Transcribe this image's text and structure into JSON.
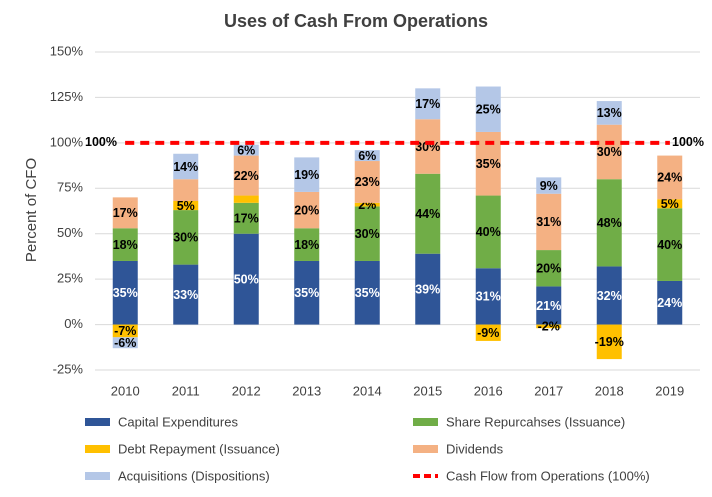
{
  "chart_data": {
    "type": "stacked-bar",
    "title": "Uses of Cash From Operations",
    "y_label": "Percent of CFO",
    "categories": [
      "2010",
      "2011",
      "2012",
      "2013",
      "2014",
      "2015",
      "2016",
      "2017",
      "2018",
      "2019"
    ],
    "ylim": [
      -25,
      150
    ],
    "yticks": [
      {
        "value": -25,
        "label": "-25%"
      },
      {
        "value": 0,
        "label": "0%"
      },
      {
        "value": 25,
        "label": "25%"
      },
      {
        "value": 50,
        "label": "50%"
      },
      {
        "value": 75,
        "label": "75%"
      },
      {
        "value": 100,
        "label": "100%"
      },
      {
        "value": 125,
        "label": "125%"
      },
      {
        "value": 150,
        "label": "150%"
      }
    ],
    "grid": true,
    "series": [
      {
        "name": "Capital Expenditures",
        "color": "#2f5597",
        "label_color": "#ffffff",
        "values": [
          35,
          33,
          50,
          35,
          35,
          39,
          31,
          21,
          32,
          24
        ],
        "value_labels": [
          "35%",
          "33%",
          "50%",
          "35%",
          "35%",
          "39%",
          "31%",
          "21%",
          "32%",
          "24%"
        ]
      },
      {
        "name": "Share Repurcahses (Issuance)",
        "color": "#70ad47",
        "label_color": "#000000",
        "values": [
          18,
          30,
          17,
          18,
          30,
          44,
          40,
          20,
          48,
          40
        ],
        "value_labels": [
          "18%",
          "30%",
          "17%",
          "18%",
          "30%",
          "44%",
          "40%",
          "20%",
          "48%",
          "40%"
        ]
      },
      {
        "name": "Debt Repayment (Issuance)",
        "color": "#ffc000",
        "label_color": "#000000",
        "values": [
          -7,
          5,
          4,
          0,
          2,
          0,
          -9,
          -2,
          -19,
          5
        ],
        "value_labels": [
          "-7%",
          "5%",
          null,
          null,
          "2%",
          null,
          "-9%",
          "-2%",
          "-19%",
          "5%"
        ]
      },
      {
        "name": "Dividends",
        "color": "#f4b183",
        "label_color": "#000000",
        "values": [
          17,
          12,
          22,
          20,
          23,
          30,
          35,
          31,
          30,
          24
        ],
        "value_labels": [
          "17%",
          null,
          "22%",
          "20%",
          "23%",
          "30%",
          "35%",
          "31%",
          "30%",
          "24%"
        ]
      },
      {
        "name": "Acquisitions (Dispositions)",
        "color": "#b4c7e7",
        "label_color": "#000000",
        "values": [
          -6,
          14,
          6,
          19,
          6,
          17,
          25,
          9,
          13,
          0
        ],
        "value_labels": [
          "-6%",
          "14%",
          "6%",
          "19%",
          "6%",
          "17%",
          "25%",
          "9%",
          "13%",
          null
        ]
      },
      {
        "name": "Cash Flow from Operations (100%)",
        "type": "line",
        "color": "#ff0000",
        "values": [
          100,
          100,
          100,
          100,
          100,
          100,
          100,
          100,
          100,
          100
        ]
      }
    ],
    "line_labels": [
      "100%",
      "100%"
    ]
  }
}
